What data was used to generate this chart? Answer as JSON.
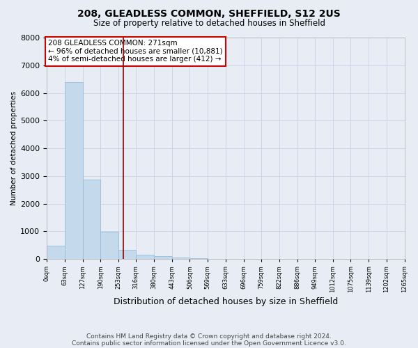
{
  "title": "208, GLEADLESS COMMON, SHEFFIELD, S12 2US",
  "subtitle": "Size of property relative to detached houses in Sheffield",
  "xlabel": "Distribution of detached houses by size in Sheffield",
  "ylabel": "Number of detached properties",
  "bar_color": "#c5d9ed",
  "bar_edge_color": "#9bbcd8",
  "bar_values": [
    480,
    6380,
    2870,
    990,
    340,
    160,
    90,
    55,
    30,
    0,
    0,
    0,
    0,
    0,
    0,
    0,
    0,
    0,
    0,
    0
  ],
  "bin_edges": [
    0,
    63,
    127,
    190,
    253,
    316,
    380,
    443,
    506,
    569,
    633,
    696,
    759,
    822,
    886,
    949,
    1012,
    1075,
    1139,
    1202,
    1265
  ],
  "x_tick_labels": [
    "0sqm",
    "63sqm",
    "127sqm",
    "190sqm",
    "253sqm",
    "316sqm",
    "380sqm",
    "443sqm",
    "506sqm",
    "569sqm",
    "633sqm",
    "696sqm",
    "759sqm",
    "822sqm",
    "886sqm",
    "949sqm",
    "1012sqm",
    "1075sqm",
    "1139sqm",
    "1202sqm",
    "1265sqm"
  ],
  "ylim": [
    0,
    8000
  ],
  "yticks": [
    0,
    1000,
    2000,
    3000,
    4000,
    5000,
    6000,
    7000,
    8000
  ],
  "red_line_x": 271,
  "red_line_color": "#8b0000",
  "annotation_text": "208 GLEADLESS COMMON: 271sqm\n← 96% of detached houses are smaller (10,881)\n4% of semi-detached houses are larger (412) →",
  "annotation_box_color": "#ffffff",
  "annotation_box_edge_color": "#cc0000",
  "footnote1": "Contains HM Land Registry data © Crown copyright and database right 2024.",
  "footnote2": "Contains public sector information licensed under the Open Government Licence v3.0.",
  "grid_color": "#ccd6e8",
  "background_color": "#e8edf5"
}
